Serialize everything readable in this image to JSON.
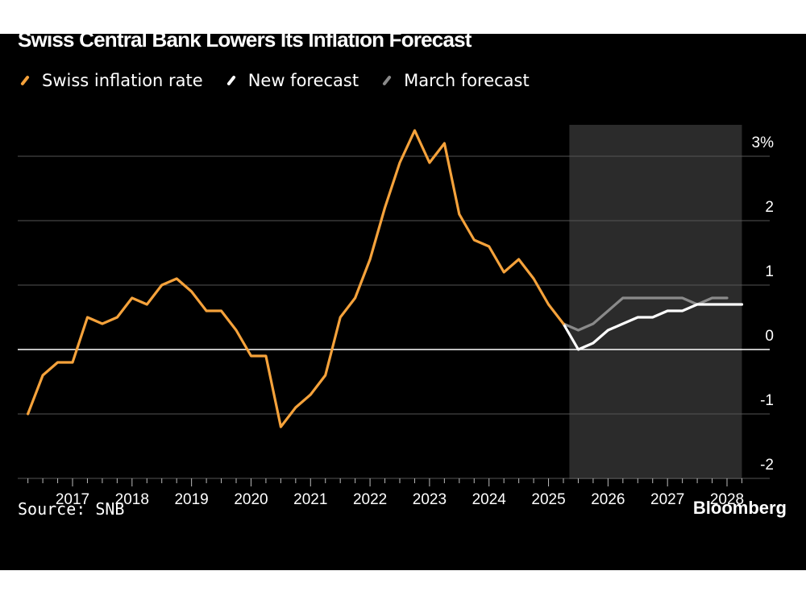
{
  "footer": {
    "source": "Source: SNB",
    "brand": "Bloomberg"
  },
  "chart_data": {
    "type": "line",
    "title": "Swiss Central Bank Lowers Its Inflation Forecast",
    "ylabel": "%",
    "y_unit_suffix": "%",
    "ylim": [
      -2,
      3.3
    ],
    "yticks": [
      -2,
      -1,
      0,
      1,
      2,
      3
    ],
    "ytick_labels": [
      "-2",
      "-1",
      "0",
      "1",
      "2",
      "3%"
    ],
    "xlim": [
      2016.2,
      2028.4
    ],
    "xticks": [
      2017,
      2018,
      2019,
      2020,
      2021,
      2022,
      2023,
      2024,
      2025,
      2026,
      2027,
      2028
    ],
    "xtick_labels": [
      "2017",
      "2018",
      "2019",
      "2020",
      "2021",
      "2022",
      "2023",
      "2024",
      "2025",
      "2026",
      "2027",
      "2028"
    ],
    "grid": true,
    "legend_position": "top-left",
    "forecast_region": [
      2025.35,
      2028.25
    ],
    "colors": {
      "background": "#000000",
      "forecast_shade": "#2b2b2b",
      "grid": "#555555",
      "zero_line": "#ffffff",
      "text": "#ffffff"
    },
    "series": [
      {
        "name": "Swiss inflation rate",
        "color": "#f5a23b",
        "x": [
          2016.25,
          2016.5,
          2016.75,
          2017.0,
          2017.25,
          2017.5,
          2017.75,
          2018.0,
          2018.25,
          2018.5,
          2018.75,
          2019.0,
          2019.25,
          2019.5,
          2019.75,
          2020.0,
          2020.25,
          2020.5,
          2020.75,
          2021.0,
          2021.25,
          2021.5,
          2021.75,
          2022.0,
          2022.25,
          2022.5,
          2022.75,
          2023.0,
          2023.25,
          2023.5,
          2023.75,
          2024.0,
          2024.25,
          2024.5,
          2024.75,
          2025.0,
          2025.25
        ],
        "values": [
          -1.0,
          -0.4,
          -0.2,
          -0.2,
          0.5,
          0.4,
          0.5,
          0.8,
          0.7,
          1.0,
          1.1,
          0.9,
          0.6,
          0.6,
          0.3,
          -0.1,
          -0.1,
          -1.2,
          -0.9,
          -0.7,
          -0.4,
          0.5,
          0.8,
          1.4,
          2.2,
          2.9,
          3.4,
          2.9,
          3.2,
          2.1,
          1.7,
          1.6,
          1.2,
          1.4,
          1.1,
          0.7,
          0.4
        ]
      },
      {
        "name": "New forecast",
        "color": "#ffffff",
        "x": [
          2025.25,
          2025.5,
          2025.75,
          2026.0,
          2026.25,
          2026.5,
          2026.75,
          2027.0,
          2027.25,
          2027.5,
          2027.75,
          2028.0,
          2028.25
        ],
        "values": [
          0.4,
          0.0,
          0.1,
          0.3,
          0.4,
          0.5,
          0.5,
          0.6,
          0.6,
          0.7,
          0.7,
          0.7,
          0.7
        ]
      },
      {
        "name": "March forecast",
        "color": "#8a8a8a",
        "x": [
          2025.25,
          2025.5,
          2025.75,
          2026.0,
          2026.25,
          2026.5,
          2026.75,
          2027.0,
          2027.25,
          2027.5,
          2027.75,
          2028.0
        ],
        "values": [
          0.4,
          0.3,
          0.4,
          0.6,
          0.8,
          0.8,
          0.8,
          0.8,
          0.8,
          0.7,
          0.8,
          0.8
        ]
      }
    ]
  }
}
